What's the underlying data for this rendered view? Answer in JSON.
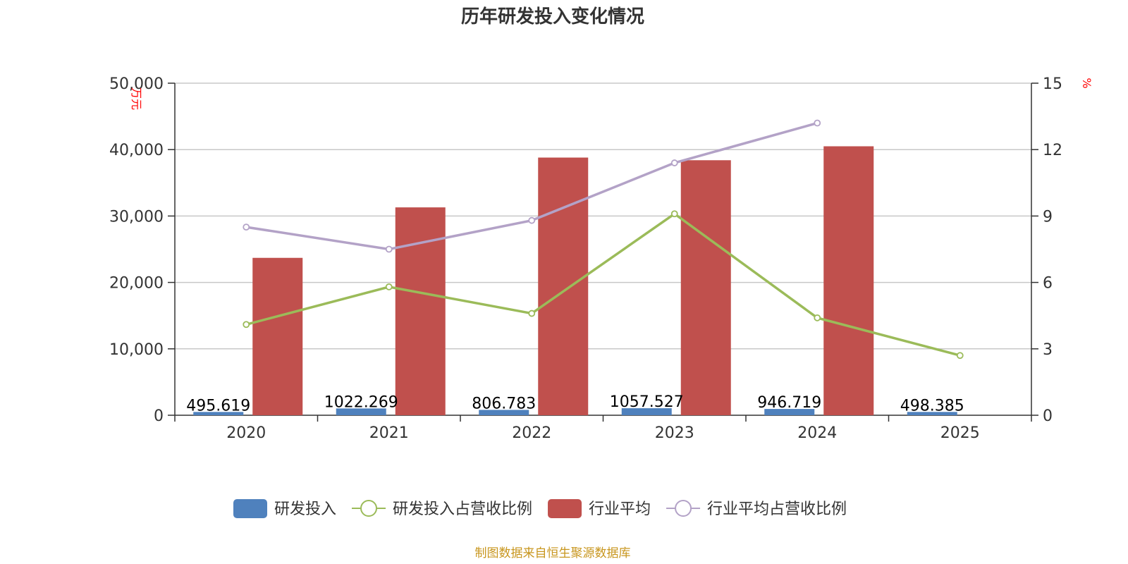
{
  "chart_data": {
    "type": "bar",
    "title": "历年研发投入变化情况",
    "categories": [
      "2020",
      "2021",
      "2022",
      "2023",
      "2024",
      "2025"
    ],
    "left_axis": {
      "unit": "万元",
      "min": 0,
      "max": 50000,
      "ticks": [
        "0",
        "10,000",
        "20,000",
        "30,000",
        "40,000",
        "50,000"
      ],
      "tick_values": [
        0,
        10000,
        20000,
        30000,
        40000,
        50000
      ]
    },
    "right_axis": {
      "unit": "%",
      "min": 0,
      "max": 15,
      "ticks": [
        "0",
        "3",
        "6",
        "9",
        "12",
        "15"
      ],
      "tick_values": [
        0,
        3,
        6,
        9,
        12,
        15
      ]
    },
    "series": [
      {
        "name": "研发投入",
        "type": "bar",
        "axis": "left",
        "color": "#4f81bd",
        "values": [
          495.619,
          1022.269,
          806.783,
          1057.527,
          946.719,
          498.385
        ],
        "labels": [
          "495.619",
          "1022.269",
          "806.783",
          "1057.527",
          "946.719",
          "498.385"
        ]
      },
      {
        "name": "研发投入占营收比例",
        "type": "line",
        "axis": "right",
        "color": "#9bbb59",
        "values": [
          4.1,
          5.8,
          4.6,
          9.1,
          4.4,
          2.7
        ]
      },
      {
        "name": "行业平均",
        "type": "bar",
        "axis": "left",
        "color": "#c0504d",
        "values": [
          23700,
          31300,
          38800,
          38400,
          40500,
          null
        ]
      },
      {
        "name": "行业平均占营收比例",
        "type": "line",
        "axis": "right",
        "color": "#b3a2c7",
        "values": [
          8.5,
          7.5,
          8.8,
          11.4,
          13.2,
          null
        ]
      }
    ],
    "grid": true,
    "legend_position": "bottom"
  },
  "source_note": "制图数据来自恒生聚源数据库"
}
